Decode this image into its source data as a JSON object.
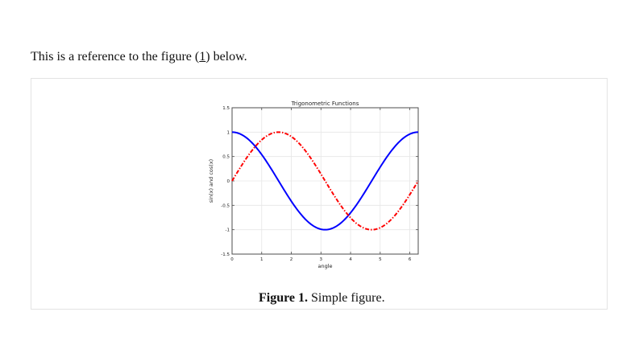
{
  "reference": {
    "text_before": "This is a reference to the figure (",
    "link_text": "1",
    "text_after": ") below."
  },
  "caption": {
    "label": "Figure 1.",
    "text": " Simple figure."
  },
  "chart_data": {
    "type": "line",
    "title": "Trigonometric Functions",
    "xlabel": "angle",
    "ylabel": "sin(x) and cos(x)",
    "xlim": [
      0,
      6.2832
    ],
    "ylim": [
      -1.5,
      1.5
    ],
    "x_ticks": [
      "0",
      "1",
      "2",
      "3",
      "4",
      "5",
      "6"
    ],
    "y_ticks": [
      "-1.5",
      "-1",
      "-0.5",
      "0",
      "0.5",
      "1",
      "1.5"
    ],
    "grid": true,
    "x": [
      0,
      0.3307,
      0.6614,
      0.9921,
      1.3228,
      1.6535,
      1.9842,
      2.3149,
      2.6456,
      2.9762,
      3.3069,
      3.6376,
      3.9683,
      4.299,
      4.6297,
      4.9604,
      5.2911,
      5.6218,
      5.9525,
      6.2832
    ],
    "series": [
      {
        "function": "cos(x)",
        "color": "#0000ff",
        "line_style": "solid",
        "values": [
          1.0,
          0.9458,
          0.7891,
          0.5469,
          0.2455,
          -0.0826,
          -0.4017,
          -0.6773,
          -0.8795,
          -0.9864,
          -0.9864,
          -0.8795,
          -0.6773,
          -0.4017,
          -0.0826,
          0.2455,
          0.5469,
          0.7891,
          0.9458,
          1.0
        ]
      },
      {
        "function": "sin(x)",
        "color": "#ff0000",
        "line_style": "dash-dot",
        "values": [
          0.0,
          0.3247,
          0.6142,
          0.8372,
          0.9694,
          0.9966,
          0.9158,
          0.7357,
          0.4759,
          0.1646,
          -0.1646,
          -0.4759,
          -0.7357,
          -0.9158,
          -0.9966,
          -0.9694,
          -0.8372,
          -0.6142,
          -0.3247,
          0.0
        ]
      }
    ]
  }
}
